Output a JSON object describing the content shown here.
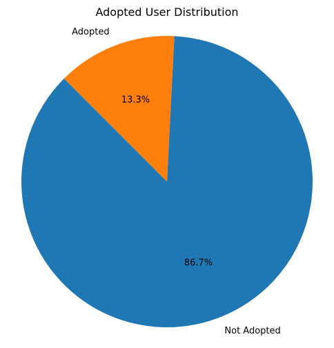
{
  "chart_data": {
    "type": "pie",
    "title": "Adopted User Distribution",
    "start_angle_deg": 135,
    "direction": "counterclockwise",
    "slices": [
      {
        "label": "Not Adopted",
        "value": 86.7,
        "pct_label": "86.7%",
        "color": "#1f77b4"
      },
      {
        "label": "Adopted",
        "value": 13.3,
        "pct_label": "13.3%",
        "color": "#ff7f0e"
      }
    ]
  }
}
